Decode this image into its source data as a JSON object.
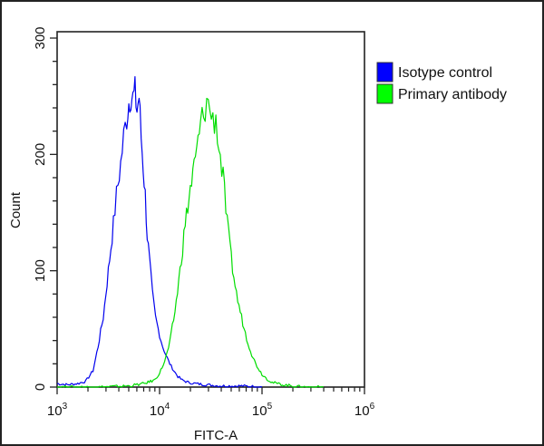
{
  "chart_data": {
    "type": "line",
    "subtype": "flow-cytometry-histogram",
    "title": "",
    "xlabel": "FITC-A",
    "ylabel": "Count",
    "xscale": "log",
    "xlim": [
      1000,
      1000000
    ],
    "ylim": [
      0,
      300
    ],
    "x_ticks": [
      {
        "exp": 3,
        "base": "10",
        "sup": "3"
      },
      {
        "exp": 4,
        "base": "10",
        "sup": "4"
      },
      {
        "exp": 5,
        "base": "10",
        "sup": "5"
      },
      {
        "exp": 6,
        "base": "10",
        "sup": "6"
      }
    ],
    "y_ticks": [
      0,
      100,
      200,
      300
    ],
    "y_minor_step": 20,
    "grid": false,
    "legend_position": "upper-right-outside",
    "series": [
      {
        "name": "Isotype control",
        "color": "#0000ee",
        "swatch_color": "#0000ff",
        "log10x": [
          3.0,
          3.1,
          3.2,
          3.28,
          3.35,
          3.4,
          3.45,
          3.5,
          3.55,
          3.58,
          3.62,
          3.65,
          3.68,
          3.7,
          3.72,
          3.74,
          3.76,
          3.78,
          3.8,
          3.82,
          3.84,
          3.86,
          3.88,
          3.9,
          3.93,
          3.96,
          4.0,
          4.03,
          4.06,
          4.1,
          4.14,
          4.18,
          4.22,
          4.28,
          4.35,
          4.45,
          4.6,
          4.8,
          5.0
        ],
        "counts": [
          3,
          2,
          3,
          5,
          14,
          35,
          60,
          100,
          140,
          165,
          192,
          215,
          232,
          245,
          252,
          248,
          253,
          238,
          250,
          215,
          190,
          165,
          130,
          110,
          80,
          60,
          45,
          35,
          28,
          20,
          14,
          9,
          6,
          4,
          3,
          2,
          1,
          1,
          0
        ]
      },
      {
        "name": "Primary antibody",
        "color": "#00dd00",
        "swatch_color": "#00ff00",
        "log10x": [
          3.0,
          3.4,
          3.7,
          3.85,
          3.95,
          4.0,
          4.05,
          4.1,
          4.15,
          4.2,
          4.25,
          4.3,
          4.35,
          4.4,
          4.43,
          4.46,
          4.49,
          4.52,
          4.55,
          4.58,
          4.62,
          4.66,
          4.7,
          4.75,
          4.8,
          4.85,
          4.9,
          4.95,
          5.0,
          5.05,
          5.1,
          5.2,
          5.3,
          5.4,
          5.6
        ],
        "counts": [
          0,
          0,
          1,
          3,
          6,
          12,
          22,
          38,
          65,
          100,
          140,
          170,
          195,
          225,
          235,
          245,
          240,
          228,
          232,
          205,
          180,
          140,
          110,
          80,
          60,
          42,
          28,
          18,
          11,
          7,
          4,
          2,
          1,
          0,
          0
        ]
      }
    ]
  }
}
